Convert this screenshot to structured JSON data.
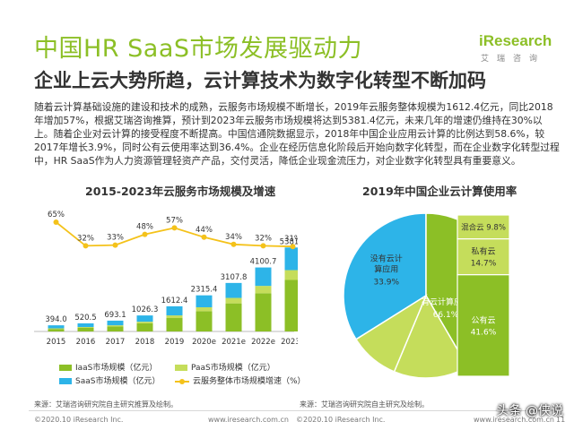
{
  "header": {
    "title": "中国HR SaaS市场发展驱动力",
    "subtitle": "企业上云大势所趋，云计算技术为数字化转型不断加码",
    "logo_text": "iResearch",
    "logo_cn": "艾瑞咨询"
  },
  "body_text": "随着云计算基础设施的建设和技术的成熟，云服务市场规模不断增长，2019年云服务整体规模为1612.4亿元，同比2018年增加57%，根据艾瑞咨询推算，预计到2023年云服务市场规模将达到5381.4亿元，未来几年的增速仍维持在30%以上。随着企业对云计算的接受程度不断提高。中国信通院数据显示，2018年中国企业应用云计算的比例达到58.6%，较2017年增长3.9%，同时公有云使用率达到36.4%。企业在经历信息化阶段后开始向数字化转型，而在企业数字化转型过程中，HR SaaS作为人力资源管理轻资产产品，交付灵活，降低企业现金流压力，对企业数字化转型具有重要意义。",
  "colors": {
    "accent": "#8cbf26",
    "iaas": "#8cbf26",
    "paas": "#c5dd5b",
    "saas": "#2db4e8",
    "growth": "#f4c21a",
    "pie_dark": "#8cbf26",
    "pie_light": "#c5dd5b",
    "pie_blue": "#2db4e8"
  },
  "chart_data": [
    {
      "type": "bar",
      "title": "2015-2023年云服务市场规模及增速",
      "categories": [
        "2015",
        "2016",
        "2017",
        "2018",
        "2019",
        "2020e",
        "2021e",
        "2022e",
        "2023e"
      ],
      "totals": [
        394.0,
        520.5,
        693.1,
        1026.3,
        1612.4,
        2315.4,
        3107.8,
        4100.7,
        5381.4
      ],
      "total_labels": [
        "394.0",
        "520.5",
        "693.1",
        "1026.3",
        "1612.4",
        "2315.4",
        "3107.8",
        "4100.7",
        "5381.4"
      ],
      "series": [
        {
          "name": "IaaS市场规模（亿元）",
          "values": [
            160,
            230,
            320,
            520,
            860,
            1300,
            1800,
            2450,
            3300
          ]
        },
        {
          "name": "PaaS市场规模（亿元）",
          "values": [
            40,
            55,
            75,
            105,
            170,
            250,
            350,
            470,
            630
          ]
        },
        {
          "name": "SaaS市场规模（亿元）",
          "values": [
            194.0,
            235.5,
            298.1,
            401.3,
            582.4,
            765.4,
            957.8,
            1180.7,
            1451.4
          ]
        }
      ],
      "growth": {
        "name": "云服务整体市场规模增速（%）",
        "values": [
          65,
          32,
          33,
          48,
          57,
          44,
          34,
          32,
          31
        ],
        "labels": [
          "65%",
          "32%",
          "33%",
          "48%",
          "57%",
          "44%",
          "34%",
          "32%",
          "31%"
        ]
      },
      "legend": [
        {
          "label": "IaaS市场规模（亿元）",
          "color": "#8cbf26"
        },
        {
          "label": "PaaS市场规模（亿元）",
          "color": "#c5dd5b"
        },
        {
          "label": "SaaS市场规模（亿元）",
          "color": "#2db4e8"
        },
        {
          "label": "云服务整体市场规模增速（%）",
          "color": "#f4c21a"
        }
      ],
      "source": "来源：艾瑞咨询研究院自主研究推算及绘制。"
    },
    {
      "type": "pie",
      "title": "2019年中国企业云计算使用率",
      "slices": [
        {
          "name": "公有云",
          "value": 41.6,
          "label": "41.6%",
          "color": "#8cbf26"
        },
        {
          "name": "私有云",
          "value": 14.7,
          "label": "14.7%",
          "color": "#c5dd5b"
        },
        {
          "name": "混合云",
          "value": 9.8,
          "label": "9.8%",
          "color": "#c5dd5b"
        },
        {
          "name": "没有云计算应用",
          "value": 33.9,
          "label": "33.9%",
          "color": "#2db4e8"
        }
      ],
      "group": {
        "name": "有云计算应用",
        "value": 66.1,
        "label": "66.1%"
      },
      "source": "来源：艾瑞咨询研究院自主研究及绘制。"
    }
  ],
  "footer": {
    "left_copyright": "©2020.10 iResearch Inc.",
    "left_url": "www.iresearch.com.cn",
    "right_copyright": "©2020.10 iResearch Inc.",
    "right_url": "www.iresearch.com.cn",
    "page_number": "11"
  },
  "watermark": "头条 @侠说"
}
